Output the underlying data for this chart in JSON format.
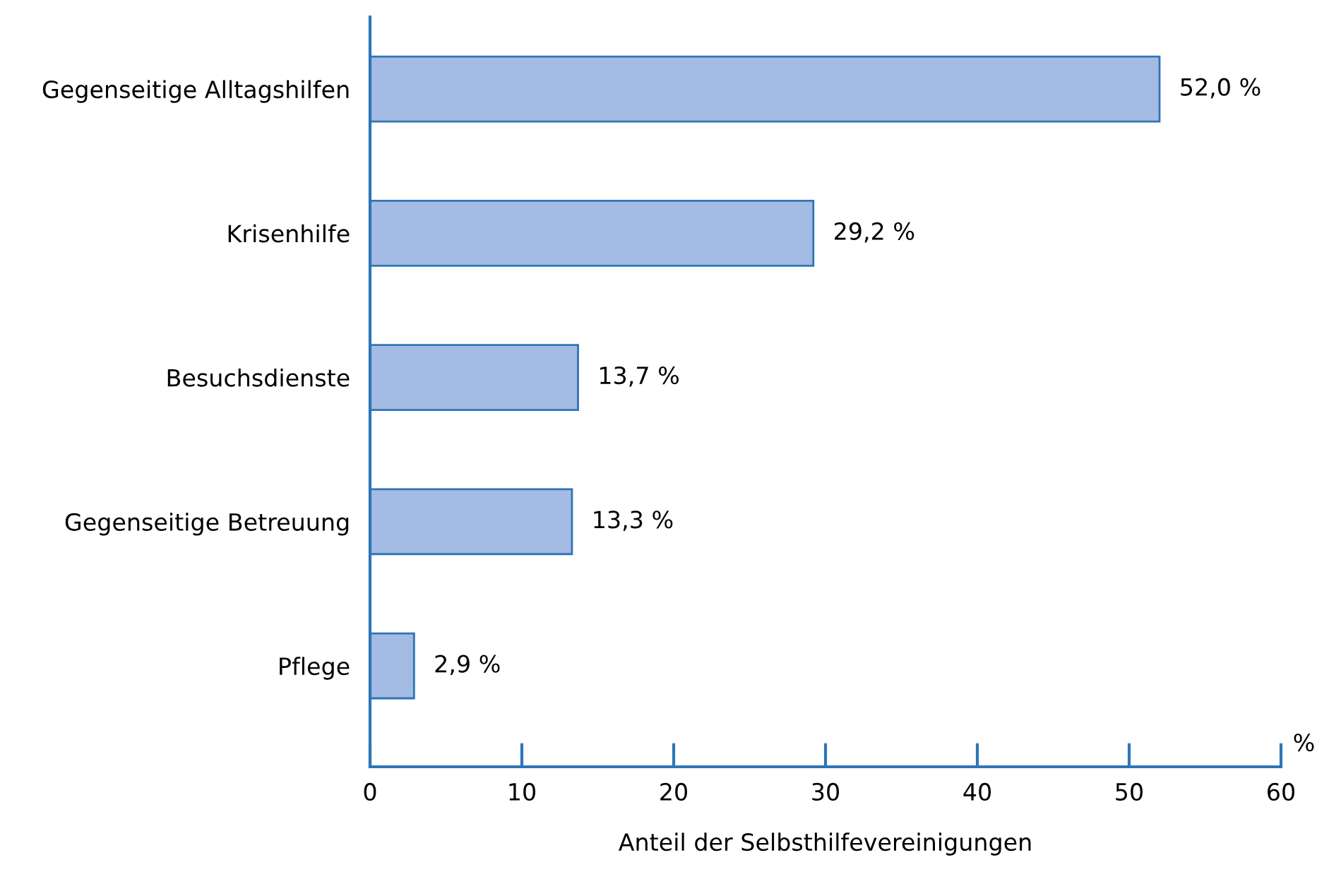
{
  "chart_data": {
    "type": "bar",
    "orientation": "horizontal",
    "categories": [
      "Gegenseitige Alltagshilfen",
      "Krisenhilfe",
      "Besuchsdienste",
      "Gegenseitige Betreuung",
      "Pflege"
    ],
    "values": [
      52.0,
      29.2,
      13.7,
      13.3,
      2.9
    ],
    "value_labels": [
      "52,0 %",
      "29,2 %",
      "13,7 %",
      "13,3 %",
      "2,9 %"
    ],
    "color": "#a4bbe4",
    "xlabel": "Anteil der Selbsthilfevereinigungen",
    "annotations": [
      "%"
    ],
    "xlim": [
      0,
      60
    ],
    "xticks": [
      0,
      10,
      20,
      30,
      40,
      50,
      60
    ],
    "grid": false,
    "legend": false
  }
}
